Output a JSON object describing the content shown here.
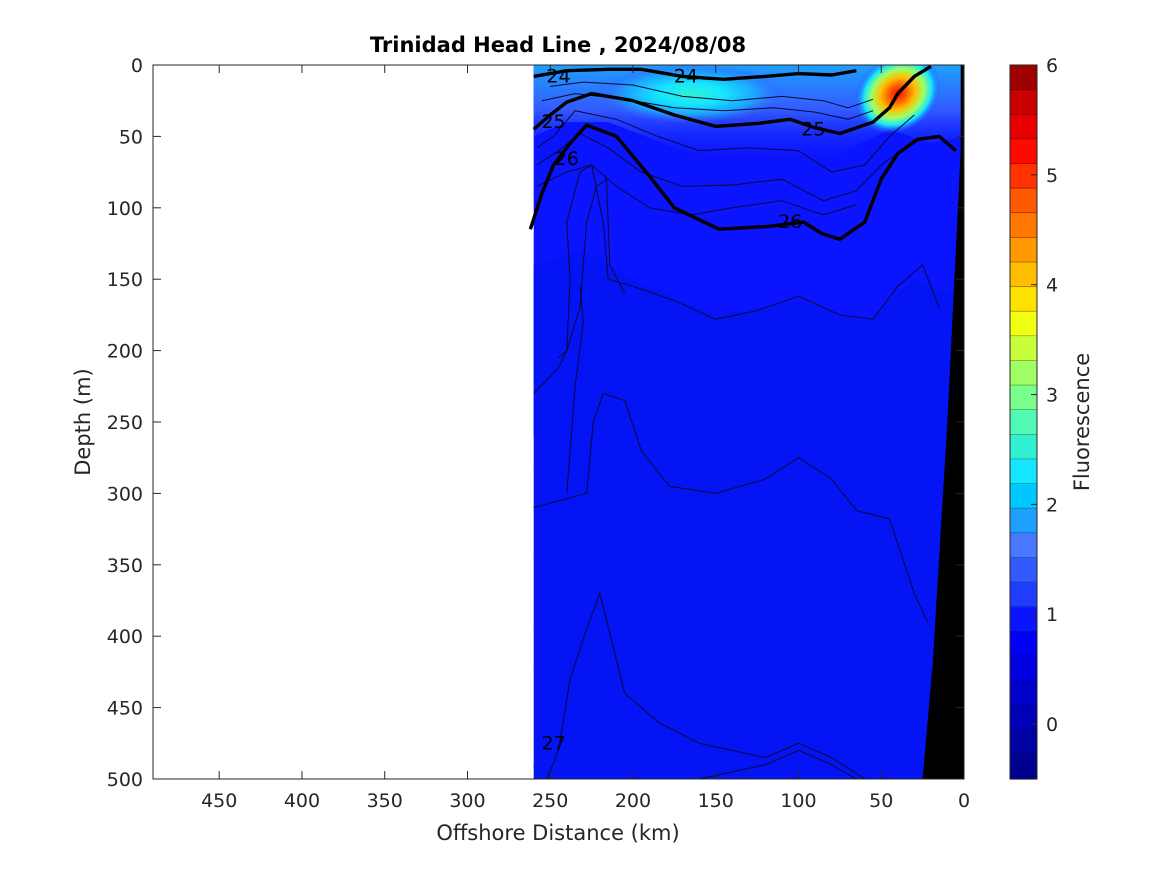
{
  "chart_data": {
    "type": "heatmap",
    "title": "Trinidad Head Line , 2024/08/08",
    "xlabel": "Offshore Distance (km)",
    "ylabel": "Depth (m)",
    "colorbar_label": "Fluorescence",
    "xlim": [
      490,
      0
    ],
    "ylim": [
      500,
      0
    ],
    "x_reversed": true,
    "y_reversed": true,
    "x_ticks": [
      450,
      400,
      350,
      300,
      250,
      200,
      150,
      100,
      50,
      0
    ],
    "y_ticks": [
      0,
      50,
      100,
      150,
      200,
      250,
      300,
      350,
      400,
      450,
      500
    ],
    "colorbar_range": [
      -0.5,
      6
    ],
    "colorbar_ticks": [
      0,
      1,
      2,
      3,
      4,
      5,
      6
    ],
    "colormap": [
      "#00008f",
      "#0000a3",
      "#0000b8",
      "#0000cc",
      "#0000e0",
      "#0000f5",
      "#0a14ff",
      "#1f3cff",
      "#335aff",
      "#4778ff",
      "#1ea0ff",
      "#00c8ff",
      "#14e6ff",
      "#32f0d2",
      "#50fab4",
      "#78ff8c",
      "#a0ff64",
      "#c8ff3c",
      "#f0ff14",
      "#ffe100",
      "#ffbe00",
      "#ff9b00",
      "#ff7800",
      "#ff5a00",
      "#ff3200",
      "#ff0a00",
      "#e60000",
      "#c80000",
      "#a00000"
    ],
    "data_extent_km": [
      260,
      0
    ],
    "field_annotations": [
      {
        "feature": "fluorescence maximum",
        "x_km": 40,
        "depth_m": 20,
        "value": 5.5
      },
      {
        "feature": "subsurface patch",
        "x_km": 165,
        "depth_m": 20,
        "value": 2.0
      },
      {
        "feature": "background",
        "value": 0.2
      }
    ],
    "bathymetry": [
      {
        "x_km": 2,
        "depth_m": 0
      },
      {
        "x_km": 2,
        "depth_m": 60
      },
      {
        "x_km": 10,
        "depth_m": 250
      },
      {
        "x_km": 19,
        "depth_m": 420
      },
      {
        "x_km": 25,
        "depth_m": 500
      }
    ],
    "density_contours": [
      {
        "level": "24",
        "label_x_km": 168,
        "label_depth_m": 8,
        "points": [
          [
            260,
            8
          ],
          [
            240,
            4
          ],
          [
            215,
            3
          ],
          [
            195,
            3
          ],
          [
            170,
            8
          ],
          [
            145,
            10
          ],
          [
            120,
            8
          ],
          [
            100,
            6
          ],
          [
            80,
            7
          ],
          [
            65,
            4
          ]
        ]
      },
      {
        "level": "25",
        "label_x_km": 245,
        "label_depth_m": 40,
        "points": [
          [
            260,
            45
          ],
          [
            250,
            35
          ],
          [
            240,
            26
          ],
          [
            225,
            20
          ],
          [
            200,
            25
          ],
          [
            175,
            35
          ],
          [
            150,
            43
          ],
          [
            125,
            41
          ],
          [
            105,
            38
          ],
          [
            90,
            44
          ],
          [
            75,
            48
          ],
          [
            55,
            40
          ],
          [
            45,
            30
          ],
          [
            40,
            20
          ],
          [
            30,
            8
          ],
          [
            20,
            1
          ]
        ]
      },
      {
        "level": "26",
        "label_x_km": 105,
        "label_depth_m": 110,
        "points": [
          [
            262,
            115
          ],
          [
            255,
            90
          ],
          [
            248,
            70
          ],
          [
            238,
            55
          ],
          [
            228,
            42
          ],
          [
            210,
            50
          ],
          [
            192,
            75
          ],
          [
            175,
            100
          ],
          [
            148,
            115
          ],
          [
            118,
            113
          ],
          [
            97,
            110
          ],
          [
            86,
            118
          ],
          [
            75,
            122
          ],
          [
            60,
            110
          ],
          [
            50,
            80
          ],
          [
            40,
            62
          ],
          [
            28,
            52
          ],
          [
            15,
            50
          ],
          [
            5,
            60
          ]
        ]
      }
    ],
    "contour_labels": [
      {
        "text": "24",
        "x_km": 168,
        "depth_m": 8
      },
      {
        "text": "24",
        "x_km": 245,
        "depth_m": 8
      },
      {
        "text": "25",
        "x_km": 91,
        "depth_m": 45
      },
      {
        "text": "25",
        "x_km": 248,
        "depth_m": 40
      },
      {
        "text": "26",
        "x_km": 105,
        "depth_m": 110
      },
      {
        "text": "26",
        "x_km": 240,
        "depth_m": 66
      },
      {
        "text": "27",
        "x_km": 248,
        "depth_m": 475
      }
    ]
  }
}
